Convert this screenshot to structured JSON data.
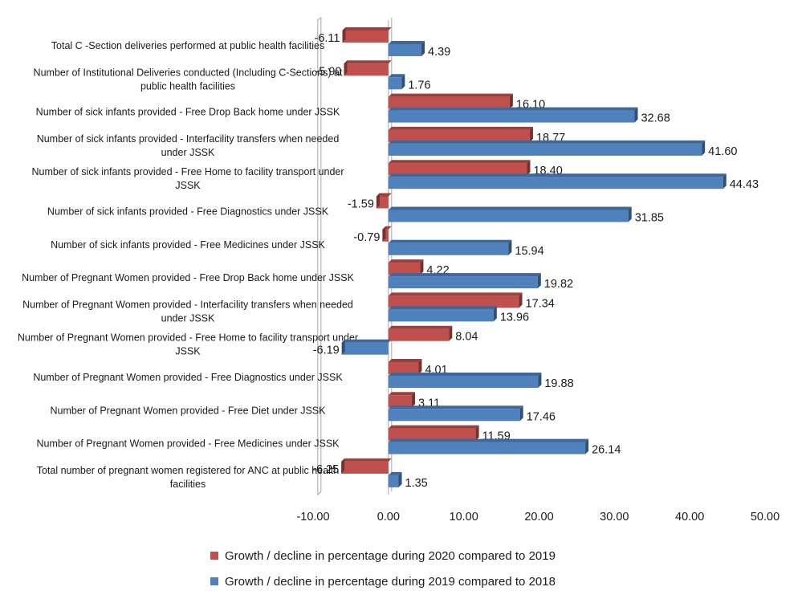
{
  "chart_data": {
    "type": "bar",
    "orientation": "horizontal",
    "categories": [
      "Total C -Section deliveries performed  at public health facilities",
      "Number of Institutional Deliveries conducted (Including C-Sections) at public health facilities",
      "Number of sick infants provided - Free Drop Back home under JSSK",
      "Number of sick infants provided - Interfacility transfers when needed under JSSK",
      "Number of sick infants provided - Free Home to facility transport under JSSK",
      "Number of sick infants provided - Free Diagnostics under JSSK",
      "Number of sick infants provided - Free Medicines under JSSK",
      "Number of Pregnant Women provided - Free Drop Back home under JSSK",
      "Number of Pregnant Women provided - Interfacility transfers when needed under JSSK",
      "Number of Pregnant Women provided - Free Home to facility transport under JSSK",
      "Number of Pregnant Women provided - Free Diagnostics under JSSK",
      "Number of Pregnant Women provided - Free Diet under JSSK",
      "Number of Pregnant Women provided - Free Medicines under JSSK",
      "Total number of pregnant women registered for ANC at public health facilities"
    ],
    "series": [
      {
        "name": "Growth / decline in percentage during 2020 compared to 2019",
        "color": "#c0504d",
        "values": [
          -6.11,
          -5.9,
          16.1,
          18.77,
          18.4,
          -1.59,
          -0.79,
          4.22,
          17.34,
          8.04,
          4.01,
          3.11,
          11.59,
          -6.25
        ],
        "labels": [
          "-6.11",
          "-5.90",
          "16.10",
          "18.77",
          "18.40",
          "-1.59",
          "-0.79",
          "4.22",
          "17.34",
          "8.04",
          "4.01",
          "3.11",
          "11.59",
          "-6.25"
        ]
      },
      {
        "name": "Growth / decline in percentage during 2019 compared to 2018",
        "color": "#4f81bd",
        "values": [
          4.39,
          1.76,
          32.68,
          41.6,
          44.43,
          31.85,
          15.94,
          19.82,
          13.96,
          -6.19,
          19.88,
          17.46,
          26.14,
          1.35
        ],
        "labels": [
          "4.39",
          "1.76",
          "32.68",
          "41.60",
          "44.43",
          "31.85",
          "15.94",
          "19.82",
          "13.96",
          "-6.19",
          "19.88",
          "17.46",
          "26.14",
          "1.35"
        ]
      }
    ],
    "xlim": [
      -10,
      50
    ],
    "ticks": [
      "-10.00",
      "0.00",
      "10.00",
      "20.00",
      "30.00",
      "40.00",
      "50.00"
    ],
    "tick_values": [
      -10,
      0,
      10,
      20,
      30,
      40,
      50
    ],
    "legend_position": "bottom",
    "grid": false
  }
}
